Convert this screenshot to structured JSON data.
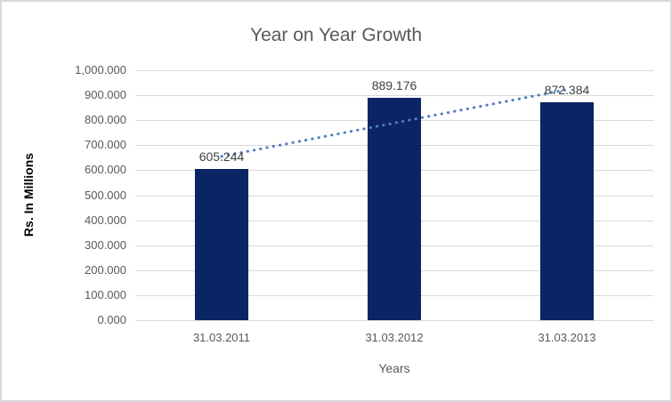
{
  "chart_data": {
    "type": "bar",
    "title": "Year on Year Growth",
    "xlabel": "Years",
    "ylabel": "Rs. In Millions",
    "categories": [
      "31.03.2011",
      "31.03.2012",
      "31.03.2013"
    ],
    "values": [
      605.244,
      889.176,
      872.384
    ],
    "data_labels": [
      "605.244",
      "889.176",
      "872.384"
    ],
    "ylim": [
      0,
      1000
    ],
    "ytick_step": 100,
    "ytick_labels": [
      "0.000",
      "100.000",
      "200.000",
      "300.000",
      "400.000",
      "500.000",
      "600.000",
      "700.000",
      "800.000",
      "900.000",
      "1,000.000"
    ],
    "grid": true,
    "legend": "none",
    "trendline": {
      "type": "linear",
      "style": "dotted",
      "series": "values"
    }
  },
  "colors": {
    "bar": "#0b2463",
    "trendline": "#4d7ebf",
    "gridline": "#d9d9d9",
    "axis_text": "#595959",
    "title_text": "#595959",
    "data_label_text": "#404040",
    "y_title_text": "#000000",
    "border": "#d9d9d9",
    "background": "#ffffff"
  }
}
